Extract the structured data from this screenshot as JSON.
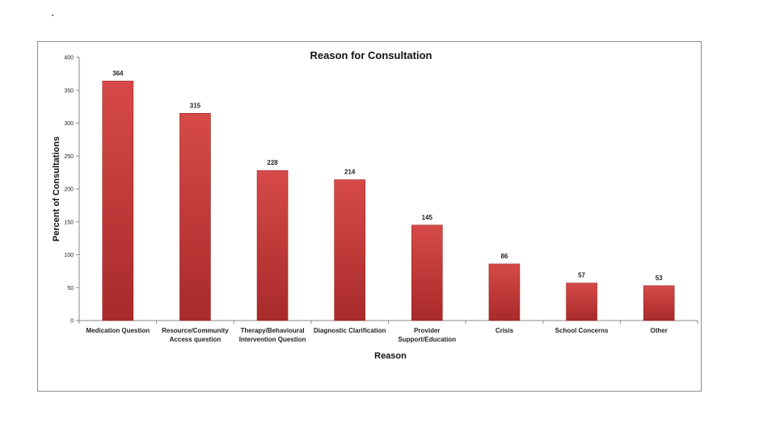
{
  "chart_data": {
    "type": "bar",
    "title": "Reason for Consultation",
    "xlabel": "Reason",
    "ylabel": "Percent of Consultations",
    "categories": [
      [
        "Medication Question"
      ],
      [
        "Resource/Community",
        "Access question"
      ],
      [
        "Therapy/Behavioural",
        "Intervention Question"
      ],
      [
        "Diagnostic Clarification"
      ],
      [
        "Provider",
        "Support/Education"
      ],
      [
        "Crisis"
      ],
      [
        "School Concerns"
      ],
      [
        "Other"
      ]
    ],
    "values": [
      364,
      315,
      228,
      214,
      145,
      86,
      57,
      53
    ],
    "ylim": [
      0,
      400
    ],
    "yticks": [
      0,
      50,
      100,
      150,
      200,
      250,
      300,
      350,
      400
    ],
    "grid": false,
    "legend": "none",
    "bar_color": "#d64a48",
    "bar_dark": "#a82a2a"
  }
}
